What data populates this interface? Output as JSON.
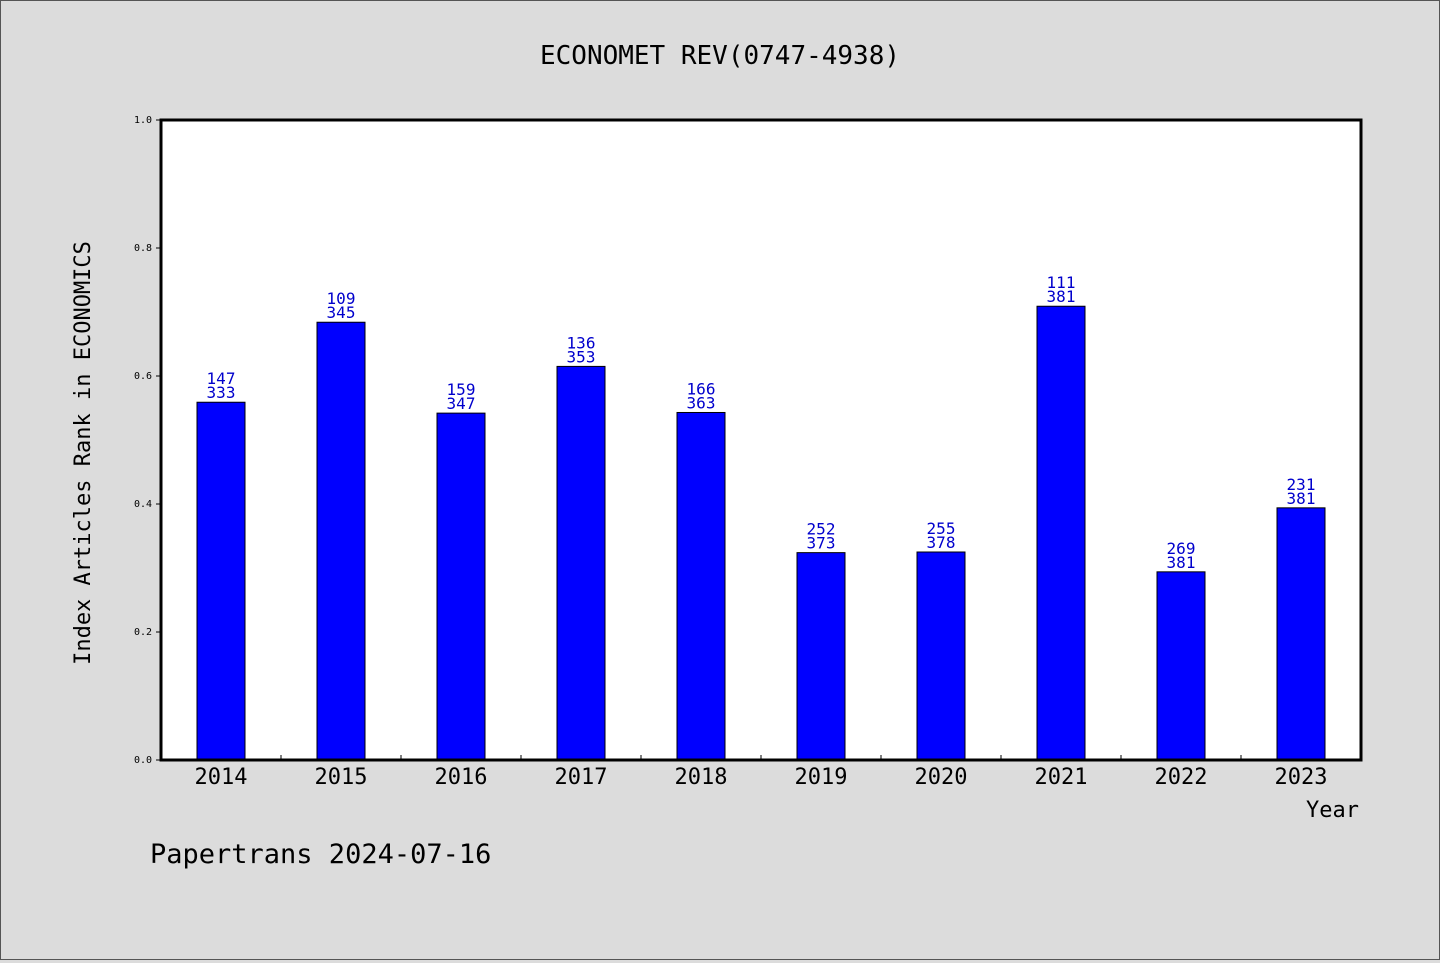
{
  "chart_data": {
    "type": "bar",
    "title": "ECONOMET REV(0747-4938)",
    "xlabel": "Year",
    "ylabel": "Index Articles Rank in ECONOMICS",
    "ylim": [
      0,
      1.0
    ],
    "yticks": [
      "0.0",
      "0.2",
      "0.4",
      "0.6",
      "0.8",
      "1.0"
    ],
    "grid": false,
    "categories": [
      "2014",
      "2015",
      "2016",
      "2017",
      "2018",
      "2019",
      "2020",
      "2021",
      "2022",
      "2023"
    ],
    "values": [
      0.559,
      0.684,
      0.542,
      0.615,
      0.543,
      0.324,
      0.325,
      0.709,
      0.294,
      0.394
    ],
    "labels_top": [
      "147",
      "109",
      "159",
      "136",
      "166",
      "252",
      "255",
      "111",
      "269",
      "231"
    ],
    "labels_bottom": [
      "333",
      "345",
      "347",
      "353",
      "363",
      "373",
      "378",
      "381",
      "381",
      "381"
    ],
    "colors": {
      "bar": "#0000ff",
      "label": "#0000cc",
      "axis": "#000000",
      "background": "#dcdcdc",
      "plot_bg": "#ffffff"
    }
  },
  "footer": {
    "credit": "Papertrans 2024-07-16"
  }
}
